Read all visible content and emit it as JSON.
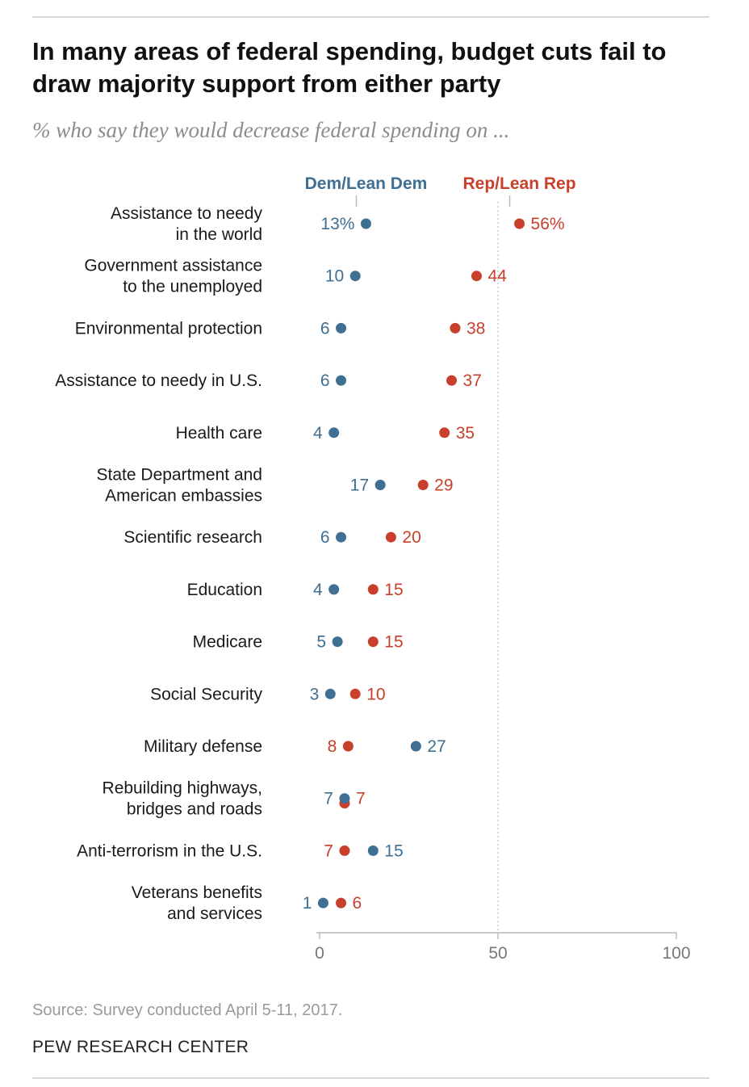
{
  "title": "In many areas of federal spending, budget cuts fail to draw majority support from either party",
  "subtitle": "% who say they would decrease federal spending on ...",
  "source": "Source: Survey conducted April 5-11, 2017.",
  "brand": "PEW RESEARCH CENTER",
  "colors": {
    "dem": "#3f6f92",
    "rep": "#c8402b",
    "axis": "#bbbbbb",
    "gridline": "#bdbdbd",
    "category_text": "#1a1a1a",
    "tick_text": "#777777"
  },
  "chart_data": {
    "type": "dot",
    "xlim": [
      0,
      100
    ],
    "xticks": [
      0,
      50,
      100
    ],
    "reference_line": 50,
    "series": [
      {
        "key": "dem",
        "name": "Dem/Lean Dem"
      },
      {
        "key": "rep",
        "name": "Rep/Lean Rep"
      }
    ],
    "rows": [
      {
        "category": [
          "Assistance to needy",
          "in the world"
        ],
        "dem": 13,
        "rep": 56,
        "dem_label": "13%",
        "rep_label": "56%"
      },
      {
        "category": [
          "Government assistance",
          "to the unemployed"
        ],
        "dem": 10,
        "rep": 44,
        "dem_label": "10",
        "rep_label": "44"
      },
      {
        "category": [
          "Environmental protection"
        ],
        "dem": 6,
        "rep": 38,
        "dem_label": "6",
        "rep_label": "38"
      },
      {
        "category": [
          "Assistance to needy in U.S."
        ],
        "dem": 6,
        "rep": 37,
        "dem_label": "6",
        "rep_label": "37"
      },
      {
        "category": [
          "Health care"
        ],
        "dem": 4,
        "rep": 35,
        "dem_label": "4",
        "rep_label": "35"
      },
      {
        "category": [
          "State Department and",
          "American embassies"
        ],
        "dem": 17,
        "rep": 29,
        "dem_label": "17",
        "rep_label": "29"
      },
      {
        "category": [
          "Scientific research"
        ],
        "dem": 6,
        "rep": 20,
        "dem_label": "6",
        "rep_label": "20"
      },
      {
        "category": [
          "Education"
        ],
        "dem": 4,
        "rep": 15,
        "dem_label": "4",
        "rep_label": "15"
      },
      {
        "category": [
          "Medicare"
        ],
        "dem": 5,
        "rep": 15,
        "dem_label": "5",
        "rep_label": "15"
      },
      {
        "category": [
          "Social Security"
        ],
        "dem": 3,
        "rep": 10,
        "dem_label": "3",
        "rep_label": "10"
      },
      {
        "category": [
          "Military defense"
        ],
        "dem": 27,
        "rep": 8,
        "dem_label": "27",
        "rep_label": "8"
      },
      {
        "category": [
          "Rebuilding highways,",
          "bridges and roads"
        ],
        "dem": 7,
        "rep": 7,
        "dem_label": "7",
        "rep_label": "7"
      },
      {
        "category": [
          "Anti-terrorism in the U.S."
        ],
        "dem": 15,
        "rep": 7,
        "dem_label": "15",
        "rep_label": "7"
      },
      {
        "category": [
          "Veterans benefits",
          "and services"
        ],
        "dem": 1,
        "rep": 6,
        "dem_label": "1",
        "rep_label": "6"
      }
    ]
  }
}
